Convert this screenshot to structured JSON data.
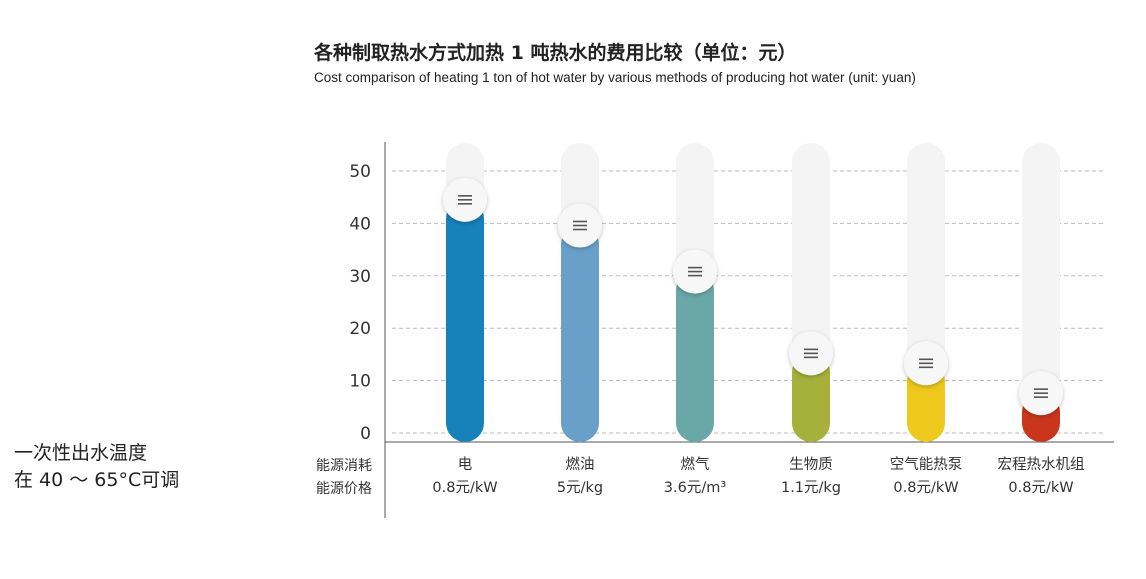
{
  "chart_data": {
    "type": "bar",
    "title": "各种制取热水方式加热 1 吨热水的费用比较（单位：元）",
    "subtitle": "Cost comparison of heating 1 ton of hot water by various methods of producing hot water (unit: yuan)",
    "ylim": [
      0,
      50
    ],
    "yticks": [
      0,
      10,
      20,
      30,
      40,
      50
    ],
    "grid": true,
    "row_labels": [
      "能源消耗",
      "能源价格"
    ],
    "categories": [
      "电",
      "燃油",
      "燃气",
      "生物质",
      "空气能热泵",
      "宏程热水机组"
    ],
    "prices": [
      "0.8元/kW",
      "5元/kg",
      "3.6元/m³",
      "1.1元/kg",
      "0.8元/kW",
      "0.8元/kW"
    ],
    "values": [
      44.5,
      39.6,
      30.8,
      15.2,
      13.3,
      7.6
    ],
    "colors": [
      "#1781b9",
      "#68a0c9",
      "#69a8a7",
      "#a5b13a",
      "#eec81d",
      "#c9361c"
    ]
  },
  "side_note": {
    "line1": "一次性出水温度",
    "line2": "在 40 ～ 65°C可调"
  },
  "handle_icon": "menu-lines-icon"
}
